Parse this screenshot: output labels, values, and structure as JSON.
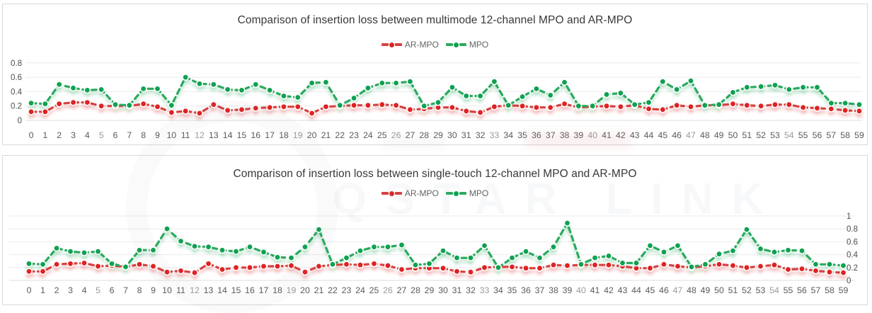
{
  "watermark": {
    "text": "QSTAR LINK"
  },
  "chart_data": [
    {
      "type": "line",
      "title": "Comparison of insertion loss between multimode 12-channel MPO and AR-MPO",
      "x_categories": [
        0,
        1,
        2,
        3,
        4,
        5,
        6,
        7,
        8,
        9,
        10,
        11,
        12,
        13,
        14,
        15,
        16,
        17,
        18,
        19,
        20,
        21,
        22,
        23,
        24,
        25,
        26,
        27,
        28,
        29,
        30,
        31,
        32,
        33,
        34,
        35,
        36,
        37,
        38,
        39,
        40,
        41,
        42,
        43,
        44,
        45,
        46,
        47,
        48,
        49,
        50,
        51,
        52,
        53,
        54,
        55,
        56,
        57,
        58,
        59
      ],
      "y_axis": {
        "side": "left",
        "ticks": [
          "0",
          "0.2",
          "0.4",
          "0.6",
          "0.8"
        ],
        "ylim": [
          0,
          0.9
        ],
        "grid": true
      },
      "legend_position": "top",
      "series": [
        {
          "name": "AR-MPO",
          "dot_color": "#df2222",
          "line_color": "#d84040",
          "values": [
            0.12,
            0.12,
            0.23,
            0.25,
            0.25,
            0.2,
            0.2,
            0.2,
            0.23,
            0.19,
            0.11,
            0.13,
            0.1,
            0.22,
            0.14,
            0.15,
            0.17,
            0.18,
            0.19,
            0.19,
            0.1,
            0.19,
            0.2,
            0.21,
            0.21,
            0.22,
            0.21,
            0.15,
            0.16,
            0.18,
            0.18,
            0.13,
            0.11,
            0.19,
            0.21,
            0.2,
            0.18,
            0.18,
            0.23,
            0.18,
            0.19,
            0.2,
            0.19,
            0.21,
            0.16,
            0.15,
            0.21,
            0.19,
            0.21,
            0.21,
            0.23,
            0.21,
            0.2,
            0.22,
            0.22,
            0.18,
            0.17,
            0.16,
            0.14,
            0.13
          ]
        },
        {
          "name": "MPO",
          "dot_color": "#0fa151",
          "line_color": "#2aa95e",
          "values": [
            0.24,
            0.23,
            0.5,
            0.45,
            0.42,
            0.43,
            0.22,
            0.21,
            0.44,
            0.44,
            0.21,
            0.6,
            0.51,
            0.5,
            0.43,
            0.42,
            0.5,
            0.42,
            0.34,
            0.32,
            0.52,
            0.53,
            0.21,
            0.31,
            0.45,
            0.52,
            0.52,
            0.54,
            0.2,
            0.25,
            0.46,
            0.34,
            0.34,
            0.54,
            0.21,
            0.33,
            0.44,
            0.35,
            0.53,
            0.2,
            0.2,
            0.36,
            0.38,
            0.22,
            0.25,
            0.54,
            0.43,
            0.55,
            0.21,
            0.22,
            0.39,
            0.46,
            0.47,
            0.49,
            0.43,
            0.46,
            0.46,
            0.24,
            0.24,
            0.22
          ]
        }
      ]
    },
    {
      "type": "line",
      "title": "Comparison of insertion loss between single-touch 12-channel MPO and AR-MPO",
      "x_categories": [
        0,
        1,
        2,
        3,
        4,
        5,
        6,
        7,
        8,
        9,
        10,
        11,
        12,
        13,
        14,
        15,
        16,
        17,
        18,
        19,
        20,
        21,
        22,
        23,
        24,
        25,
        26,
        27,
        28,
        29,
        30,
        31,
        32,
        33,
        34,
        35,
        36,
        37,
        38,
        39,
        40,
        41,
        42,
        43,
        44,
        45,
        46,
        47,
        48,
        49,
        50,
        51,
        52,
        53,
        54,
        55,
        56,
        57,
        58,
        59
      ],
      "y_axis": {
        "side": "right",
        "ticks": [
          "0",
          "0.2",
          "0.4",
          "0.6",
          "0.8",
          "1"
        ],
        "ylim": [
          0,
          1.05
        ],
        "grid": true
      },
      "legend_position": "top",
      "series": [
        {
          "name": "AR-MPO",
          "dot_color": "#df2222",
          "line_color": "#d84040",
          "values": [
            0.14,
            0.14,
            0.25,
            0.26,
            0.27,
            0.22,
            0.23,
            0.21,
            0.25,
            0.22,
            0.13,
            0.15,
            0.12,
            0.26,
            0.17,
            0.2,
            0.2,
            0.22,
            0.22,
            0.23,
            0.13,
            0.22,
            0.24,
            0.25,
            0.24,
            0.26,
            0.23,
            0.17,
            0.19,
            0.19,
            0.19,
            0.14,
            0.13,
            0.2,
            0.21,
            0.21,
            0.19,
            0.19,
            0.24,
            0.23,
            0.24,
            0.24,
            0.24,
            0.22,
            0.19,
            0.19,
            0.25,
            0.22,
            0.2,
            0.22,
            0.25,
            0.23,
            0.2,
            0.22,
            0.24,
            0.17,
            0.18,
            0.15,
            0.13,
            0.12
          ]
        },
        {
          "name": "MPO",
          "dot_color": "#0fa151",
          "line_color": "#2aa95e",
          "values": [
            0.26,
            0.25,
            0.5,
            0.45,
            0.43,
            0.45,
            0.26,
            0.21,
            0.47,
            0.47,
            0.8,
            0.61,
            0.53,
            0.52,
            0.47,
            0.45,
            0.52,
            0.44,
            0.36,
            0.35,
            0.52,
            0.79,
            0.25,
            0.35,
            0.46,
            0.52,
            0.52,
            0.55,
            0.24,
            0.26,
            0.46,
            0.35,
            0.35,
            0.54,
            0.2,
            0.35,
            0.45,
            0.35,
            0.52,
            0.89,
            0.25,
            0.35,
            0.38,
            0.27,
            0.27,
            0.54,
            0.44,
            0.54,
            0.21,
            0.25,
            0.41,
            0.46,
            0.79,
            0.49,
            0.44,
            0.47,
            0.46,
            0.25,
            0.25,
            0.23
          ]
        }
      ]
    }
  ]
}
